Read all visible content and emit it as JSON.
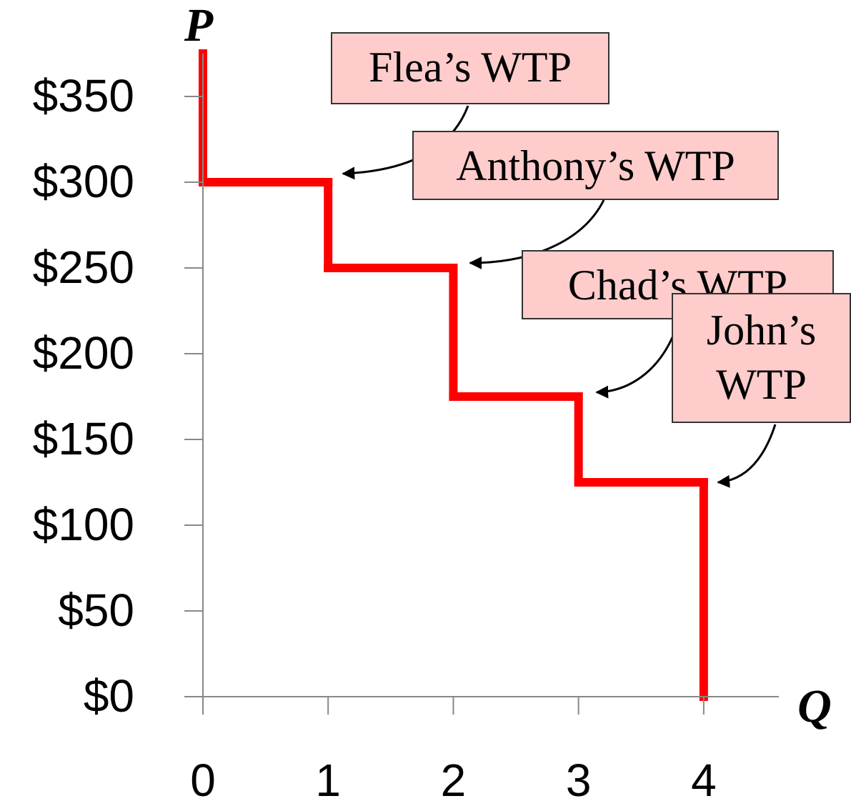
{
  "chart_data": {
    "type": "step",
    "y_label": "P",
    "x_label": "Q",
    "labels": [
      "Flea’s WTP",
      "Anthony’s WTP",
      "Chad’s WTP",
      "John’s WTP"
    ],
    "values": [
      300,
      250,
      175,
      125
    ],
    "color": "#ff0000",
    "xlim": [
      0,
      4.6
    ],
    "xticks": [
      0,
      1,
      2,
      3,
      4
    ],
    "ylim": [
      0,
      375
    ],
    "yticks": [
      {
        "value": 0,
        "label": "$0"
      },
      {
        "value": 50,
        "label": "$50"
      },
      {
        "value": 100,
        "label": "$100"
      },
      {
        "value": 150,
        "label": "$150"
      },
      {
        "value": 200,
        "label": "$200"
      },
      {
        "value": 250,
        "label": "$250"
      },
      {
        "value": 300,
        "label": "$300"
      },
      {
        "value": 350,
        "label": "$350"
      }
    ]
  }
}
